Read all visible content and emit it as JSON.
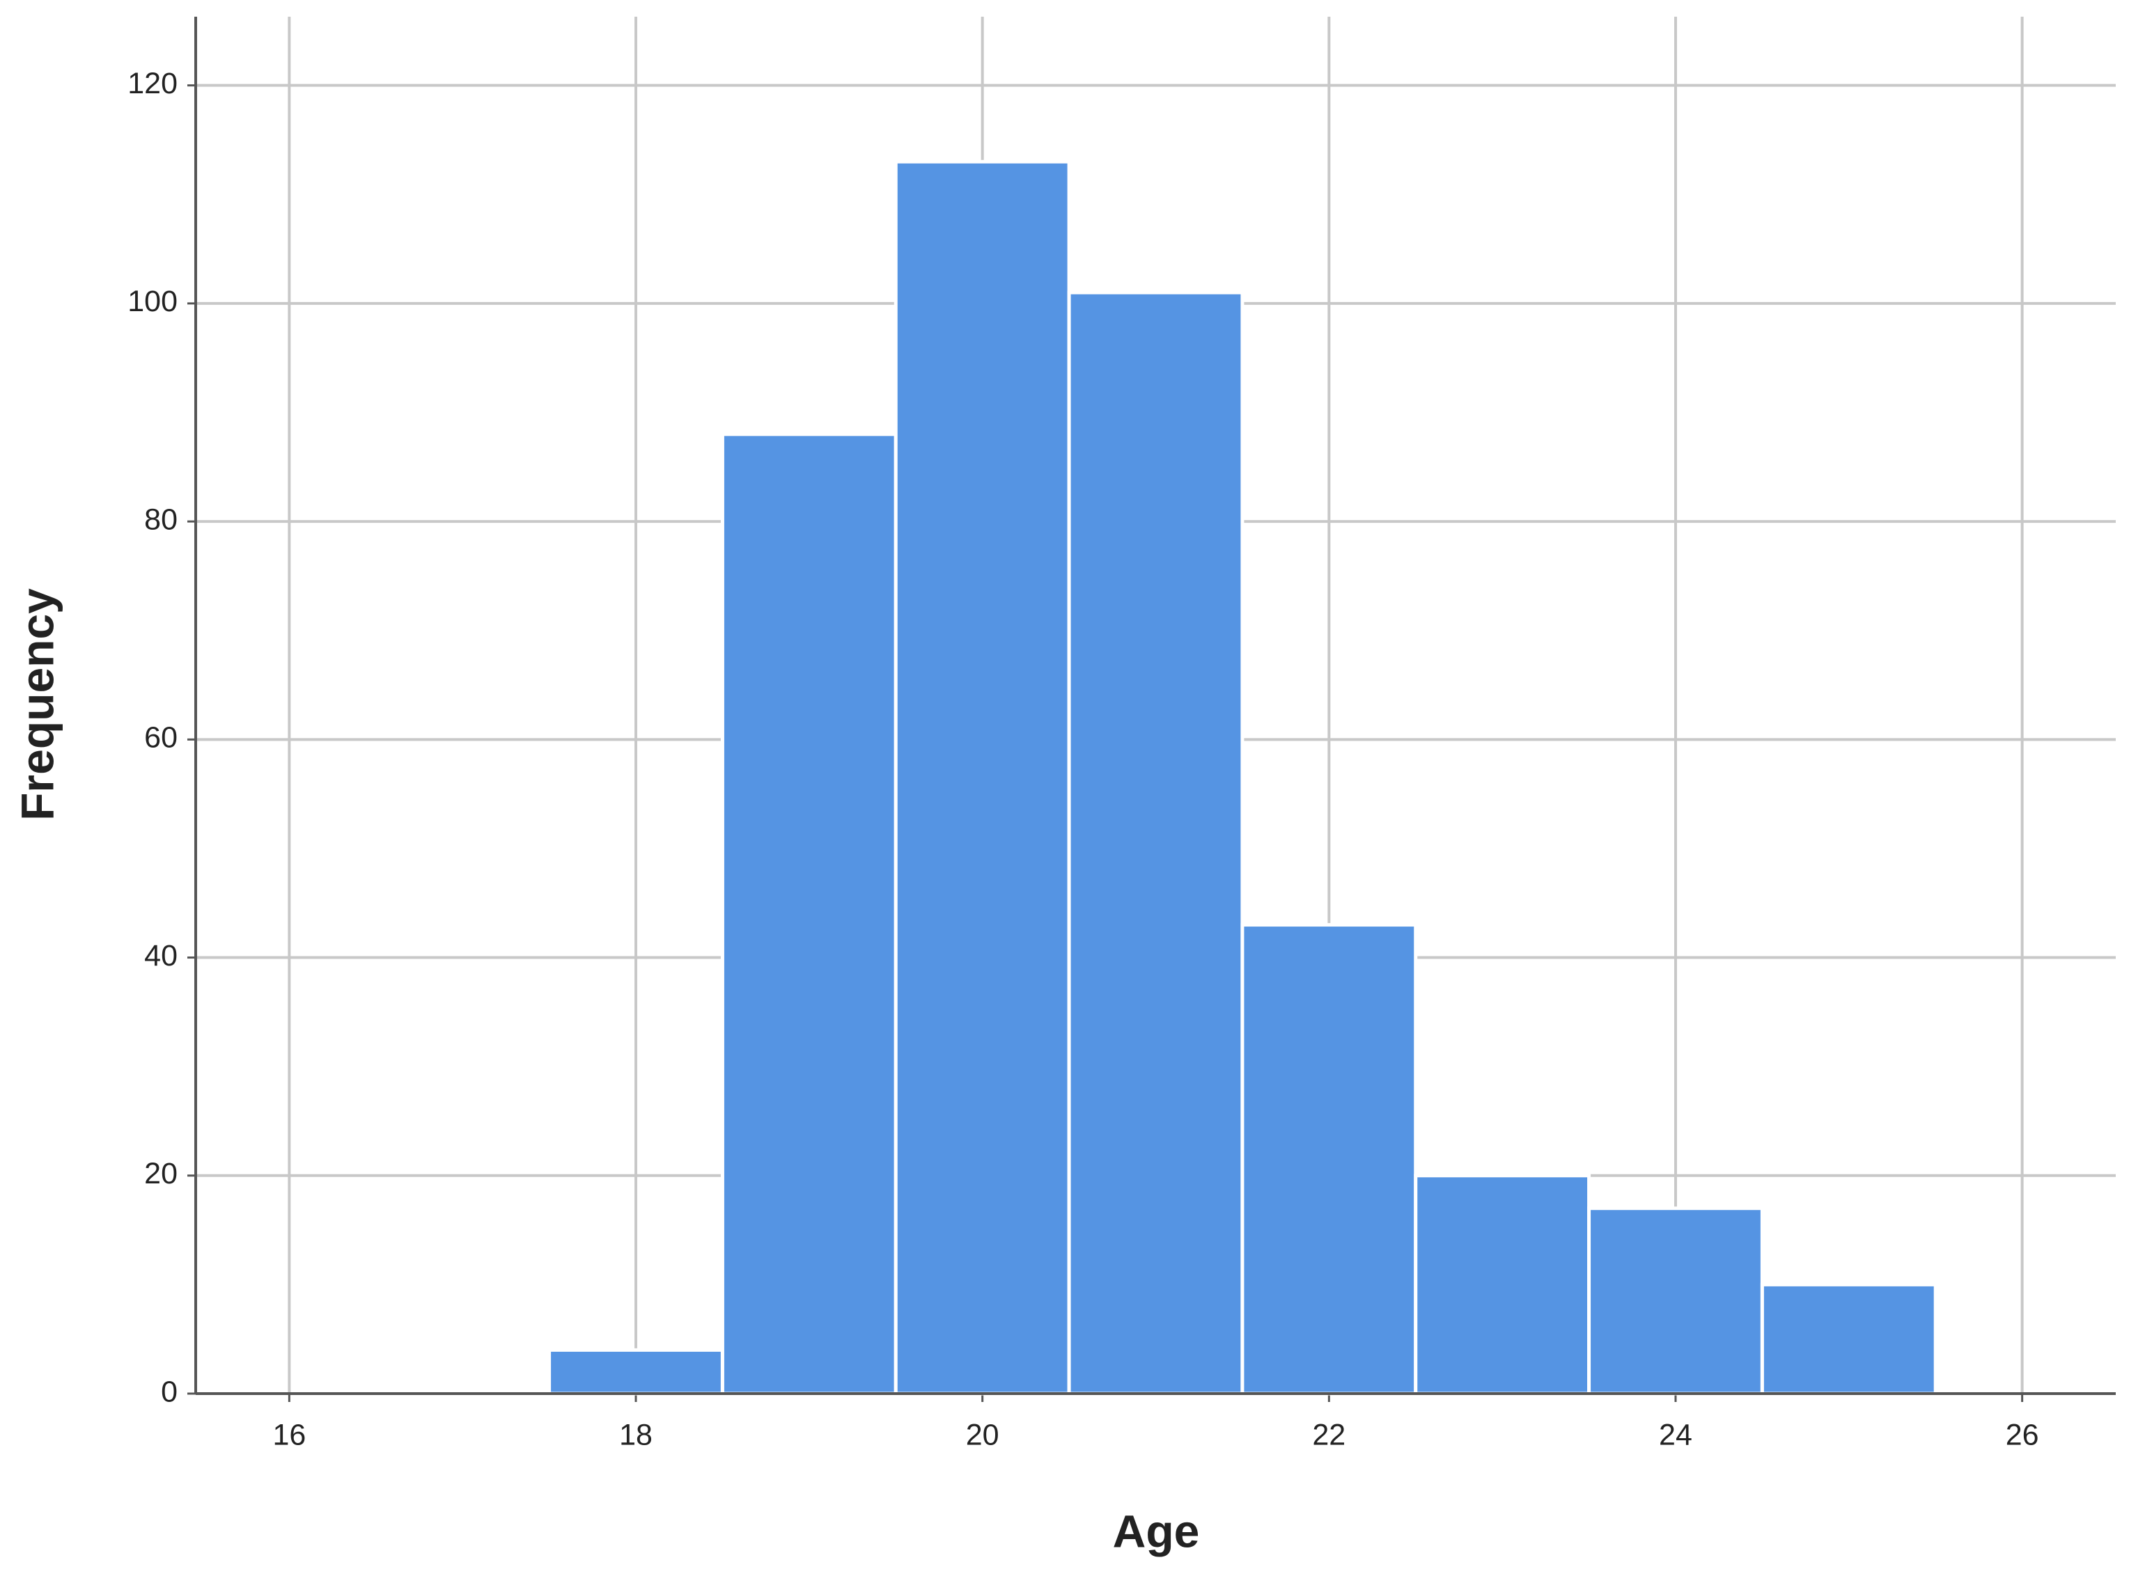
{
  "chart_data": {
    "type": "histogram",
    "x_label": "Age",
    "y_label": "Frequency",
    "bins": [
      17.5,
      18.5,
      19.5,
      20.5,
      21.5,
      22.5,
      23.5,
      24.5,
      25.5
    ],
    "values": [
      4,
      88,
      113,
      101,
      43,
      20,
      17,
      10
    ],
    "color": "#5594e3",
    "xlim": [
      15.46,
      26.54
    ],
    "xticks": [
      16,
      18,
      20,
      22,
      24,
      26
    ],
    "ylim": [
      0,
      126.3
    ],
    "yticks": [
      0,
      20,
      40,
      60,
      80,
      100,
      120
    ],
    "grid": true
  }
}
